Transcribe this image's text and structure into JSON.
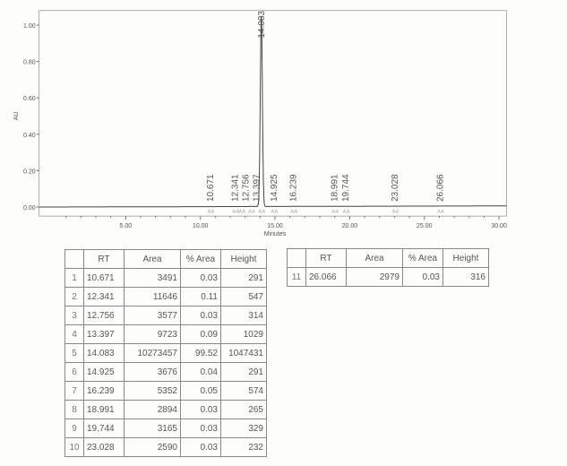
{
  "chart_data": {
    "type": "line",
    "xlabel": "Minutes",
    "ylabel": "AU",
    "xlim": [
      -0.8,
      30.5
    ],
    "ylim": [
      -0.05,
      1.08
    ],
    "x_ticks": [
      "5.00",
      "10.00",
      "15.00",
      "20.00",
      "25.00",
      "30.00"
    ],
    "x_tick_values": [
      5,
      10,
      15,
      20,
      25,
      30
    ],
    "y_ticks": [
      "0.00",
      "0.20",
      "0.40",
      "0.60",
      "0.80",
      "1.00"
    ],
    "y_tick_values": [
      0,
      0.2,
      0.4,
      0.6,
      0.8,
      1.0
    ],
    "grid": false,
    "line_color": "#444444",
    "peak_labels": [
      "10.671",
      "12.341",
      "12.756",
      "13.397",
      "14.083",
      "14.925",
      "16.239",
      "18.991",
      "19.744",
      "23.028",
      "26.066"
    ],
    "peaks_rt": [
      10.671,
      12.341,
      12.756,
      13.397,
      14.083,
      14.925,
      16.239,
      18.991,
      19.744,
      23.028,
      26.066
    ],
    "peaks_height_au": [
      0.000291,
      0.000547,
      0.000314,
      0.001029,
      1.047431,
      0.000291,
      0.000574,
      0.000265,
      0.000329,
      0.000232,
      0.000316
    ]
  },
  "table": {
    "headers": [
      "",
      "RT",
      "Area",
      "% Area",
      "Height"
    ],
    "rows_left": [
      [
        "1",
        "10.671",
        "3491",
        "0.03",
        "291"
      ],
      [
        "2",
        "12.341",
        "11646",
        "0.11",
        "547"
      ],
      [
        "3",
        "12.756",
        "3577",
        "0.03",
        "314"
      ],
      [
        "4",
        "13.397",
        "9723",
        "0.09",
        "1029"
      ],
      [
        "5",
        "14.083",
        "10273457",
        "99.52",
        "1047431"
      ],
      [
        "6",
        "14.925",
        "3676",
        "0.04",
        "291"
      ],
      [
        "7",
        "16.239",
        "5352",
        "0.05",
        "574"
      ],
      [
        "8",
        "18.991",
        "2894",
        "0.03",
        "265"
      ],
      [
        "9",
        "19.744",
        "3165",
        "0.03",
        "329"
      ],
      [
        "10",
        "23.028",
        "2590",
        "0.03",
        "232"
      ]
    ],
    "rows_right": [
      [
        "11",
        "26.066",
        "2979",
        "0.03",
        "316"
      ]
    ]
  }
}
